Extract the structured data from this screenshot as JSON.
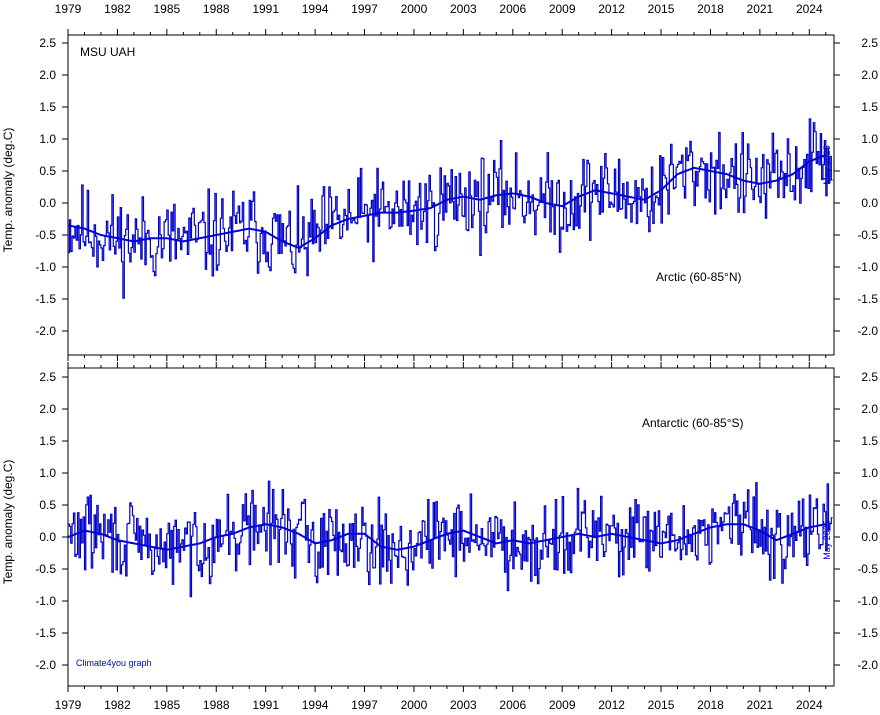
{
  "source_label": "MSU UAH",
  "credit": "Climate4you graph",
  "date_stamp": "May 2025",
  "colors": {
    "monthly": "#0000cc",
    "running_mean": "#0000dd",
    "axis": "#000000"
  },
  "chart_data": [
    {
      "type": "line",
      "region_label": "Arctic (60-85°N)",
      "ylabel": "Temp. anomaly (deg.C)",
      "xlim": [
        1979,
        2025.5
      ],
      "ylim": [
        -2.3,
        2.5
      ],
      "x_tick_labels": [
        "1979",
        "1982",
        "1985",
        "1988",
        "1991",
        "1994",
        "1997",
        "2000",
        "2003",
        "2006",
        "2009",
        "2012",
        "2015",
        "2018",
        "2021",
        "2024"
      ],
      "y_tick_labels": [
        "2.5",
        "2.0",
        "1.5",
        "1.0",
        "0.5",
        "0.0",
        "-0.5",
        "-1.0",
        "-1.5",
        "-2.0"
      ],
      "grid": false,
      "series": [
        {
          "x": [
            1979,
            1980,
            1981,
            1982,
            1983,
            1984,
            1985,
            1986,
            1987,
            1988,
            1989,
            1990,
            1991,
            1992,
            1993,
            1994,
            1995,
            1996,
            1997,
            1998,
            1999,
            2000,
            2001,
            2002,
            2003,
            2004,
            2005,
            2006,
            2007,
            2008,
            2009,
            2010,
            2011,
            2012,
            2013,
            2014,
            2015,
            2016,
            2017,
            2018,
            2019,
            2020,
            2021,
            2022,
            2023,
            2024,
            2025
          ],
          "y": [
            -0.35,
            -0.4,
            -0.5,
            -0.55,
            -0.6,
            -0.55,
            -0.55,
            -0.6,
            -0.55,
            -0.5,
            -0.45,
            -0.4,
            -0.45,
            -0.6,
            -0.7,
            -0.55,
            -0.35,
            -0.25,
            -0.2,
            -0.15,
            -0.15,
            -0.12,
            -0.08,
            0.05,
            0.1,
            0.05,
            0.12,
            0.15,
            0.1,
            0.0,
            -0.05,
            0.1,
            0.2,
            0.15,
            0.1,
            0.05,
            0.2,
            0.45,
            0.55,
            0.5,
            0.45,
            0.35,
            0.3,
            0.35,
            0.45,
            0.65,
            0.75
          ]
        }
      ]
    },
    {
      "type": "line",
      "region_label": "Antarctic (60-85°S)",
      "ylabel": "Temp. anomaly (deg.C)",
      "xlim": [
        1979,
        2025.5
      ],
      "ylim": [
        -2.3,
        2.5
      ],
      "x_tick_labels": [
        "1979",
        "1982",
        "1985",
        "1988",
        "1991",
        "1994",
        "1997",
        "2000",
        "2003",
        "2006",
        "2009",
        "2012",
        "2015",
        "2018",
        "2021",
        "2024"
      ],
      "y_tick_labels": [
        "2.5",
        "2.0",
        "1.5",
        "1.0",
        "0.5",
        "0.0",
        "-0.5",
        "-1.0",
        "-1.5",
        "-2.0"
      ],
      "grid": false,
      "series": [
        {
          "x": [
            1979,
            1980,
            1981,
            1982,
            1983,
            1984,
            1985,
            1986,
            1987,
            1988,
            1989,
            1990,
            1991,
            1992,
            1993,
            1994,
            1995,
            1996,
            1997,
            1998,
            1999,
            2000,
            2001,
            2002,
            2003,
            2004,
            2005,
            2006,
            2007,
            2008,
            2009,
            2010,
            2011,
            2012,
            2013,
            2014,
            2015,
            2016,
            2017,
            2018,
            2019,
            2020,
            2021,
            2022,
            2023,
            2024,
            2025
          ],
          "y": [
            0.0,
            0.1,
            0.05,
            -0.05,
            -0.1,
            -0.15,
            -0.2,
            -0.15,
            -0.1,
            0.0,
            0.05,
            0.15,
            0.2,
            0.15,
            0.05,
            -0.1,
            -0.05,
            0.05,
            0.05,
            -0.15,
            -0.2,
            -0.15,
            -0.05,
            0.05,
            0.1,
            0.0,
            -0.1,
            -0.05,
            -0.1,
            -0.05,
            0.0,
            0.05,
            0.0,
            0.05,
            0.0,
            -0.05,
            -0.1,
            -0.05,
            0.05,
            0.15,
            0.2,
            0.2,
            0.1,
            -0.05,
            0.05,
            0.15,
            0.2
          ]
        }
      ]
    }
  ]
}
